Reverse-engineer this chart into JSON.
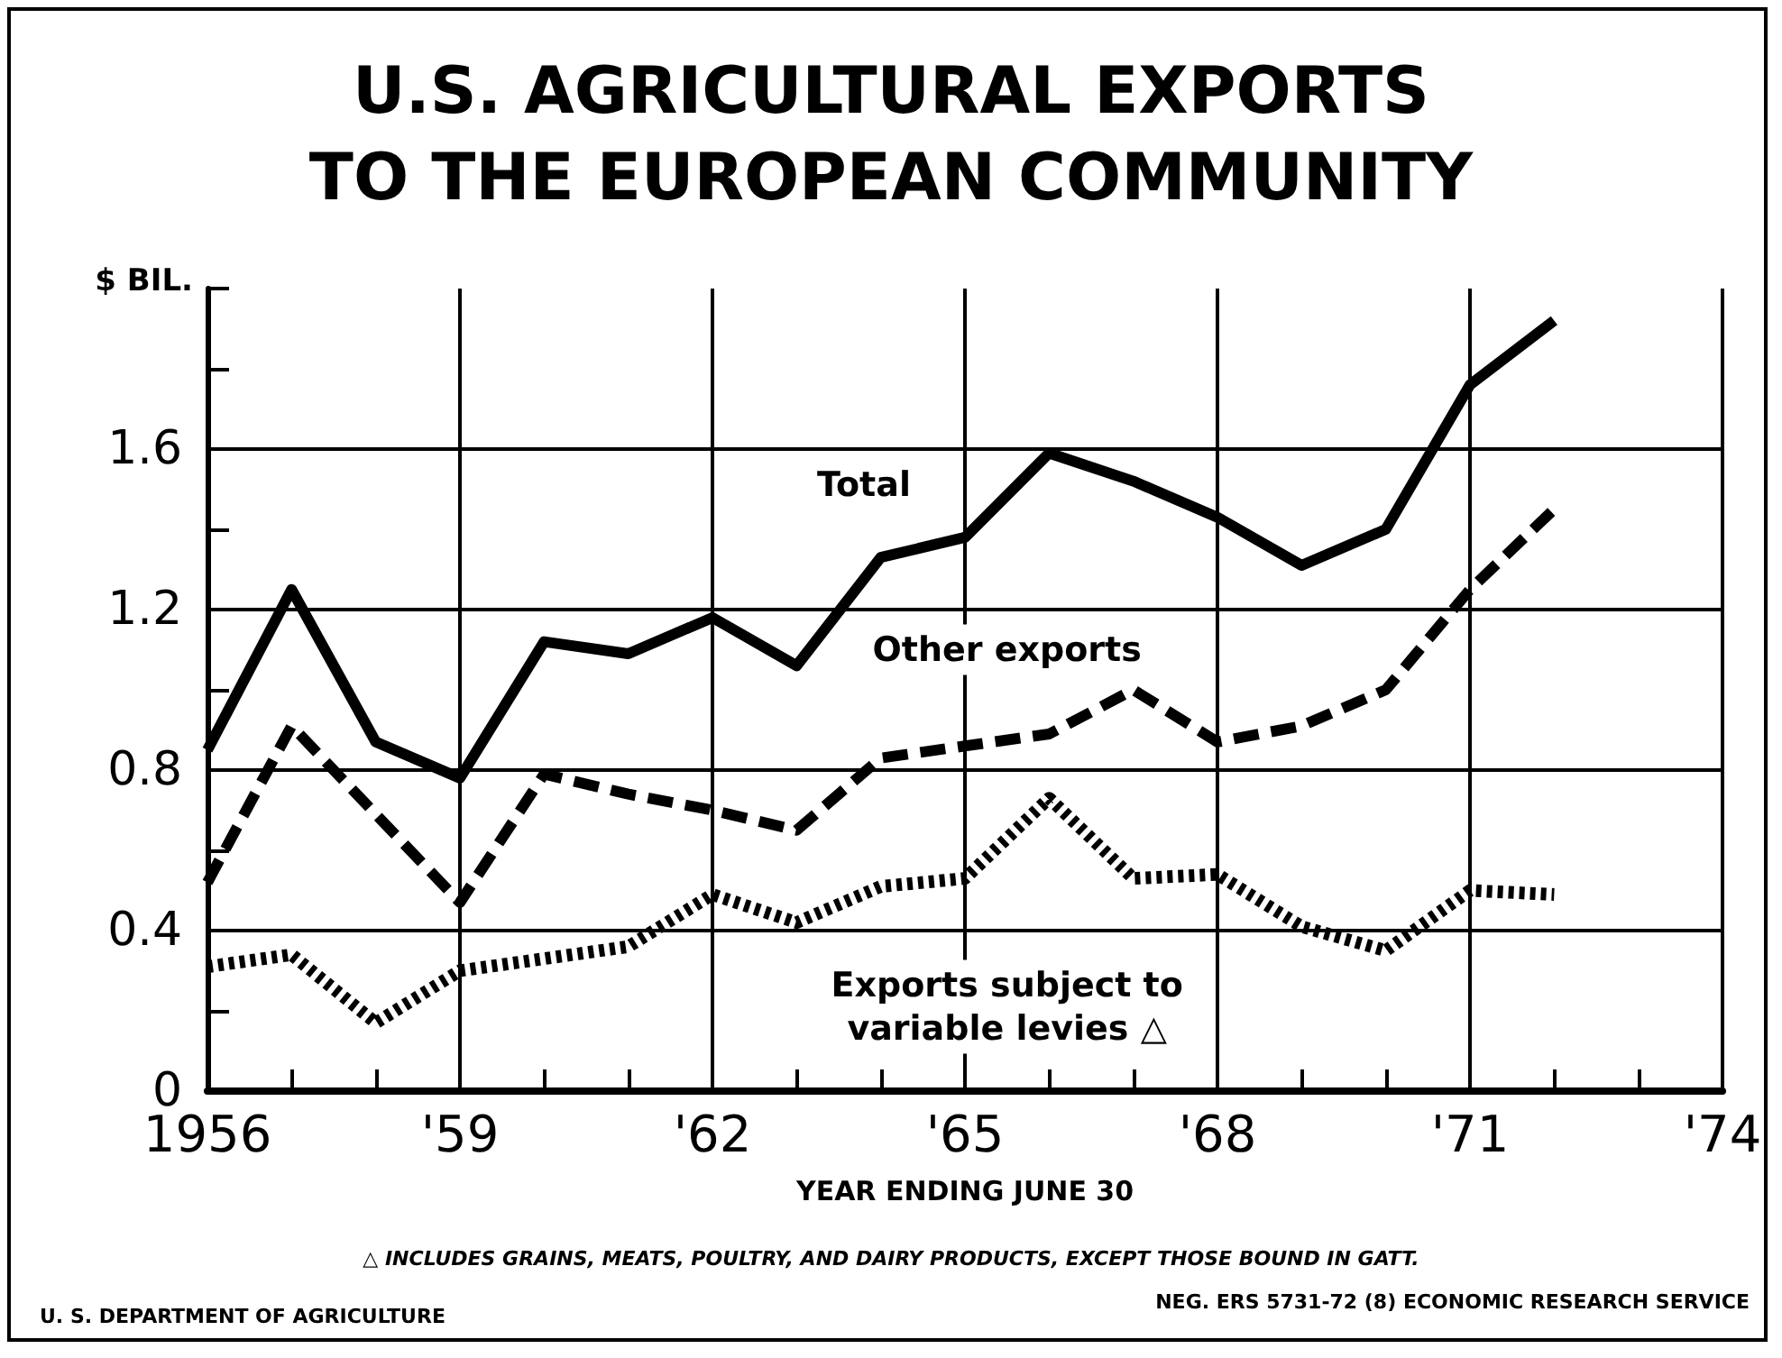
{
  "chart_data": {
    "type": "line",
    "title": "U.S. AGRICULTURAL EXPORTS\nTO THE EUROPEAN COMMUNITY",
    "xlabel": "YEAR ENDING JUNE 30",
    "ylabel": "$ BIL.",
    "annotations": [
      "△ INCLUDES GRAINS, MEATS, POULTRY, AND DAIRY PRODUCTS, EXCEPT THOSE BOUND IN GATT.",
      "U. S. DEPARTMENT OF AGRICULTURE",
      "NEG. ERS 5731-72 (8) ECONOMIC RESEARCH SERVICE"
    ],
    "x": [
      1956,
      1957,
      1958,
      1959,
      1960,
      1961,
      1962,
      1963,
      1964,
      1965,
      1966,
      1967,
      1968,
      1969,
      1970,
      1971,
      1972
    ],
    "series": [
      {
        "name": "Total",
        "color": "#000000",
        "line_style": "solid",
        "values": [
          0.85,
          1.25,
          0.87,
          0.78,
          1.12,
          1.09,
          1.18,
          1.06,
          1.33,
          1.38,
          1.59,
          1.52,
          1.43,
          1.31,
          1.4,
          1.76,
          1.92
        ]
      },
      {
        "name": "Other exports",
        "color": "#000000",
        "line_style": "dashed",
        "values": [
          0.52,
          0.91,
          0.69,
          0.47,
          0.79,
          0.74,
          0.7,
          0.65,
          0.83,
          0.86,
          0.89,
          1.0,
          0.87,
          0.91,
          1.0,
          1.25,
          1.45
        ]
      },
      {
        "name": "Exports subject to variable levies △",
        "color": "#000000",
        "line_style": "dotted",
        "values": [
          0.31,
          0.34,
          0.17,
          0.3,
          0.33,
          0.36,
          0.49,
          0.42,
          0.51,
          0.53,
          0.73,
          0.53,
          0.54,
          0.41,
          0.35,
          0.5,
          0.49
        ]
      }
    ],
    "xlim": [
      1956,
      1974
    ],
    "xticks": [
      {
        "value": 1956,
        "label": "1956"
      },
      {
        "value": 1957,
        "label": null
      },
      {
        "value": 1958,
        "label": null
      },
      {
        "value": 1959,
        "label": "'59"
      },
      {
        "value": 1960,
        "label": null
      },
      {
        "value": 1961,
        "label": null
      },
      {
        "value": 1962,
        "label": "'62"
      },
      {
        "value": 1963,
        "label": null
      },
      {
        "value": 1964,
        "label": null
      },
      {
        "value": 1965,
        "label": "'65"
      },
      {
        "value": 1966,
        "label": null
      },
      {
        "value": 1967,
        "label": null
      },
      {
        "value": 1968,
        "label": "'68"
      },
      {
        "value": 1969,
        "label": null
      },
      {
        "value": 1970,
        "label": null
      },
      {
        "value": 1971,
        "label": "'71"
      },
      {
        "value": 1972,
        "label": null
      },
      {
        "value": 1973,
        "label": null
      },
      {
        "value": 1974,
        "label": "'74"
      }
    ],
    "ylim": [
      0,
      2
    ],
    "yticks": [
      0,
      {
        "value": 0.2,
        "label": null
      },
      0.4,
      {
        "value": 0.6,
        "label": null
      },
      0.8,
      {
        "value": 1.0,
        "label": null
      },
      1.2,
      {
        "value": 1.4,
        "label": null
      },
      1.6,
      {
        "value": 1.8,
        "label": null
      },
      {
        "value": 2.0,
        "label": null
      }
    ],
    "grid": true,
    "legend": false,
    "marker": "none"
  }
}
